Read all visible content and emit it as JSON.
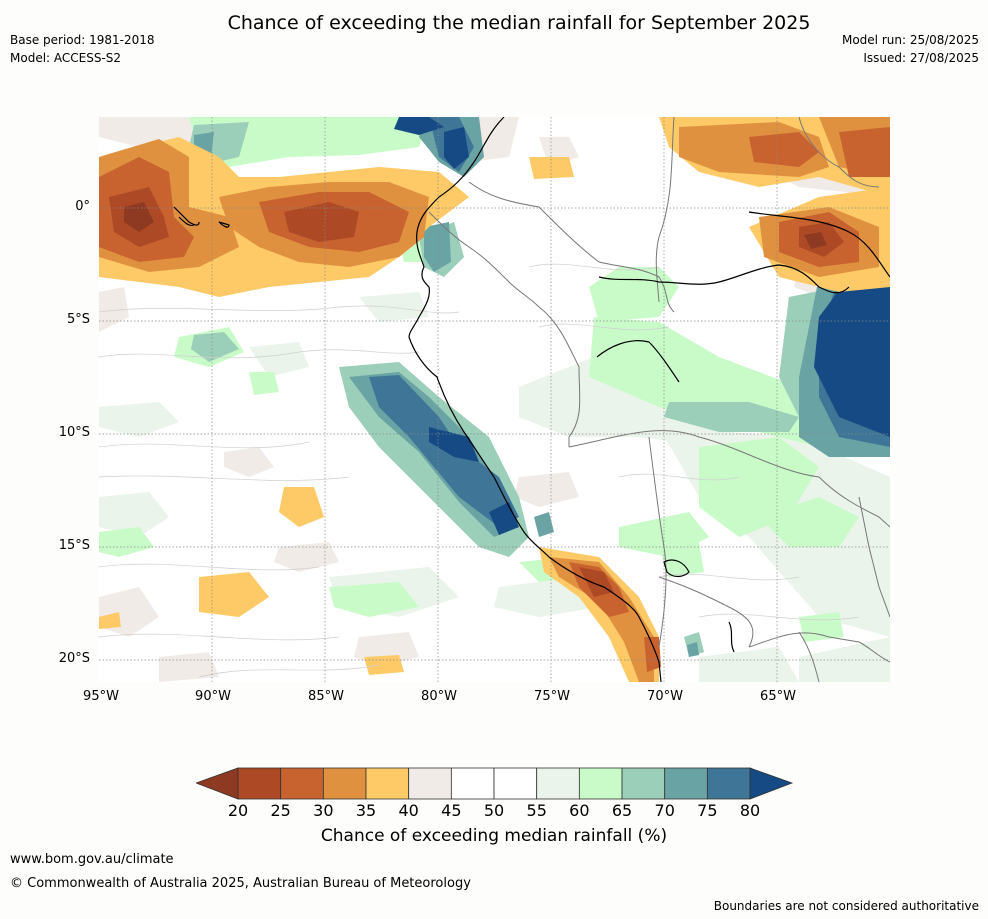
{
  "title": "Chance of exceeding the median rainfall for September 2025",
  "header_left": {
    "base_period": "Base period: 1981-2018",
    "model": "Model: ACCESS-S2"
  },
  "header_right": {
    "model_run": "Model run: 25/08/2025",
    "issued": "Issued: 27/08/2025"
  },
  "map": {
    "lat_labels": [
      "0°",
      "5°S",
      "10°S",
      "15°S",
      "20°S"
    ],
    "lon_labels": [
      "95°W",
      "90°W",
      "85°W",
      "80°W",
      "75°W",
      "70°W",
      "65°W"
    ]
  },
  "colorbar": {
    "ticks": [
      "20",
      "25",
      "30",
      "35",
      "40",
      "45",
      "50",
      "55",
      "60",
      "65",
      "70",
      "75",
      "80"
    ],
    "colors": [
      "#ad4a25",
      "#c8632f",
      "#e0913f",
      "#fdca67",
      "#f0ebe6",
      "#ffffff",
      "#ffffff",
      "#eaf4ea",
      "#c9fbc9",
      "#9bcfb9",
      "#6aa3a4",
      "#3f7697"
    ],
    "low_extend_color": "#8e3a22",
    "high_extend_color": "#164a85",
    "label": "Chance of exceeding median rainfall (%)"
  },
  "footer": {
    "url": "www.bom.gov.au/climate",
    "copyright": "© Commonwealth of Australia 2025, Australian Bureau of Meteorology",
    "note": "Boundaries are not considered authoritative"
  }
}
